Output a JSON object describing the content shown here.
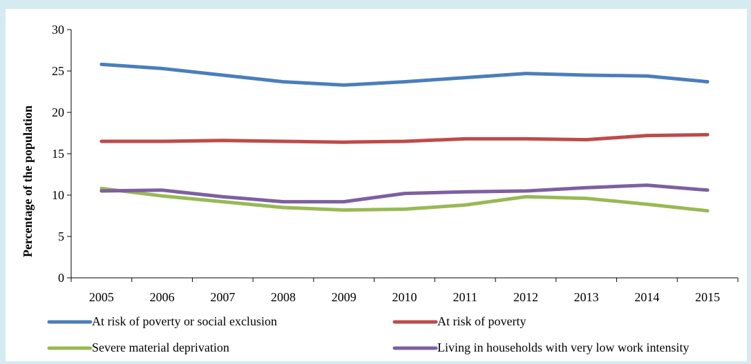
{
  "chart_data": {
    "type": "line",
    "title": "",
    "xlabel": "",
    "ylabel": "Percentage of the population",
    "ylim": [
      0,
      30
    ],
    "yticks": [
      0,
      5,
      10,
      15,
      20,
      25,
      30
    ],
    "x": [
      "2005",
      "2006",
      "2007",
      "2008",
      "2009",
      "2010",
      "2011",
      "2012",
      "2013",
      "2014",
      "2015"
    ],
    "grid": false,
    "legend_position": "bottom",
    "series": [
      {
        "name": "At risk of poverty or social exclusion",
        "color": "#4a7ebb",
        "values": [
          25.8,
          25.3,
          24.5,
          23.7,
          23.3,
          23.7,
          24.2,
          24.7,
          24.5,
          24.4,
          23.7
        ]
      },
      {
        "name": "At risk of poverty",
        "color": "#be4b48",
        "values": [
          16.5,
          16.5,
          16.6,
          16.5,
          16.4,
          16.5,
          16.8,
          16.8,
          16.7,
          17.2,
          17.3
        ]
      },
      {
        "name": "Severe material deprivation",
        "color": "#98b954",
        "values": [
          10.8,
          9.9,
          9.2,
          8.5,
          8.2,
          8.3,
          8.8,
          9.8,
          9.6,
          8.9,
          8.1
        ]
      },
      {
        "name": "Living in households with very low work intensity",
        "color": "#7d60a0",
        "values": [
          10.5,
          10.6,
          9.8,
          9.2,
          9.2,
          10.2,
          10.4,
          10.5,
          10.9,
          11.2,
          10.6
        ]
      }
    ]
  }
}
